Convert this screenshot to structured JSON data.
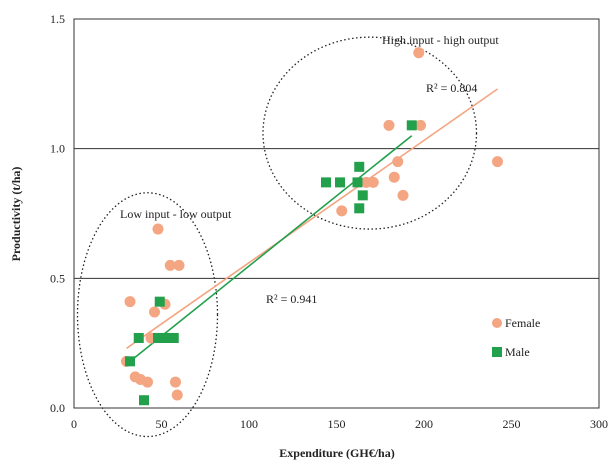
{
  "chart_data": {
    "type": "scatter",
    "title": "",
    "xlabel": "Expenditure (GH€/ha)",
    "ylabel": "Productivity (t/ha)",
    "xlim": [
      0,
      300
    ],
    "ylim": [
      0,
      1.5
    ],
    "x_ticks": [
      0,
      50,
      100,
      150,
      200,
      250,
      300
    ],
    "y_ticks": [
      0.0,
      0.5,
      1.0,
      1.5
    ],
    "x_tick_labels": [
      "0",
      "50",
      "100",
      "150",
      "200",
      "250",
      "300"
    ],
    "y_tick_labels": [
      "0.0",
      "0.5",
      "1.0",
      "1.5"
    ],
    "grid": "horizontal",
    "legend_position": "right",
    "series": [
      {
        "name": "Female",
        "marker": "circle",
        "color": "#F4A582",
        "points": [
          [
            30,
            0.18
          ],
          [
            32,
            0.41
          ],
          [
            35,
            0.12
          ],
          [
            38,
            0.11
          ],
          [
            42,
            0.1
          ],
          [
            44,
            0.27
          ],
          [
            46,
            0.37
          ],
          [
            48,
            0.69
          ],
          [
            52,
            0.4
          ],
          [
            55,
            0.55
          ],
          [
            58,
            0.1
          ],
          [
            59,
            0.05
          ],
          [
            60,
            0.55
          ],
          [
            153,
            0.76
          ],
          [
            167,
            0.87
          ],
          [
            171,
            0.87
          ],
          [
            180,
            1.09
          ],
          [
            183,
            0.89
          ],
          [
            185,
            0.95
          ],
          [
            188,
            0.82
          ],
          [
            197,
            1.37
          ],
          [
            198,
            1.09
          ],
          [
            242,
            0.95
          ]
        ]
      },
      {
        "name": "Male",
        "marker": "square",
        "color": "#22A04C",
        "points": [
          [
            32,
            0.18
          ],
          [
            37,
            0.27
          ],
          [
            40,
            0.03
          ],
          [
            48,
            0.27
          ],
          [
            49,
            0.41
          ],
          [
            50,
            0.27
          ],
          [
            53,
            0.27
          ],
          [
            55,
            0.27
          ],
          [
            57,
            0.27
          ],
          [
            144,
            0.87
          ],
          [
            152,
            0.87
          ],
          [
            162,
            0.87
          ],
          [
            163,
            0.93
          ],
          [
            163,
            0.77
          ],
          [
            165,
            0.82
          ],
          [
            193,
            1.09
          ]
        ]
      }
    ],
    "trendlines": [
      {
        "series": "Female",
        "color": "#F4A582",
        "x": [
          30,
          242
        ],
        "y": [
          0.23,
          1.23
        ]
      },
      {
        "series": "Male",
        "color": "#22A04C",
        "x": [
          32,
          193
        ],
        "y": [
          0.18,
          1.05
        ]
      }
    ],
    "annotations": [
      {
        "text": "High input - high output"
      },
      {
        "text": "R² = 0.804"
      },
      {
        "text": "Low input - low output"
      },
      {
        "text": "R² = 0.941"
      }
    ],
    "ellipses": [
      {
        "label": "Low input - low output",
        "cx": 42,
        "cy": 0.36,
        "rx_units": 40,
        "ry_units": 0.47
      },
      {
        "label": "High input - high output",
        "cx": 169,
        "cy": 1.06,
        "rx_units": 61,
        "ry_units": 0.37
      }
    ]
  }
}
